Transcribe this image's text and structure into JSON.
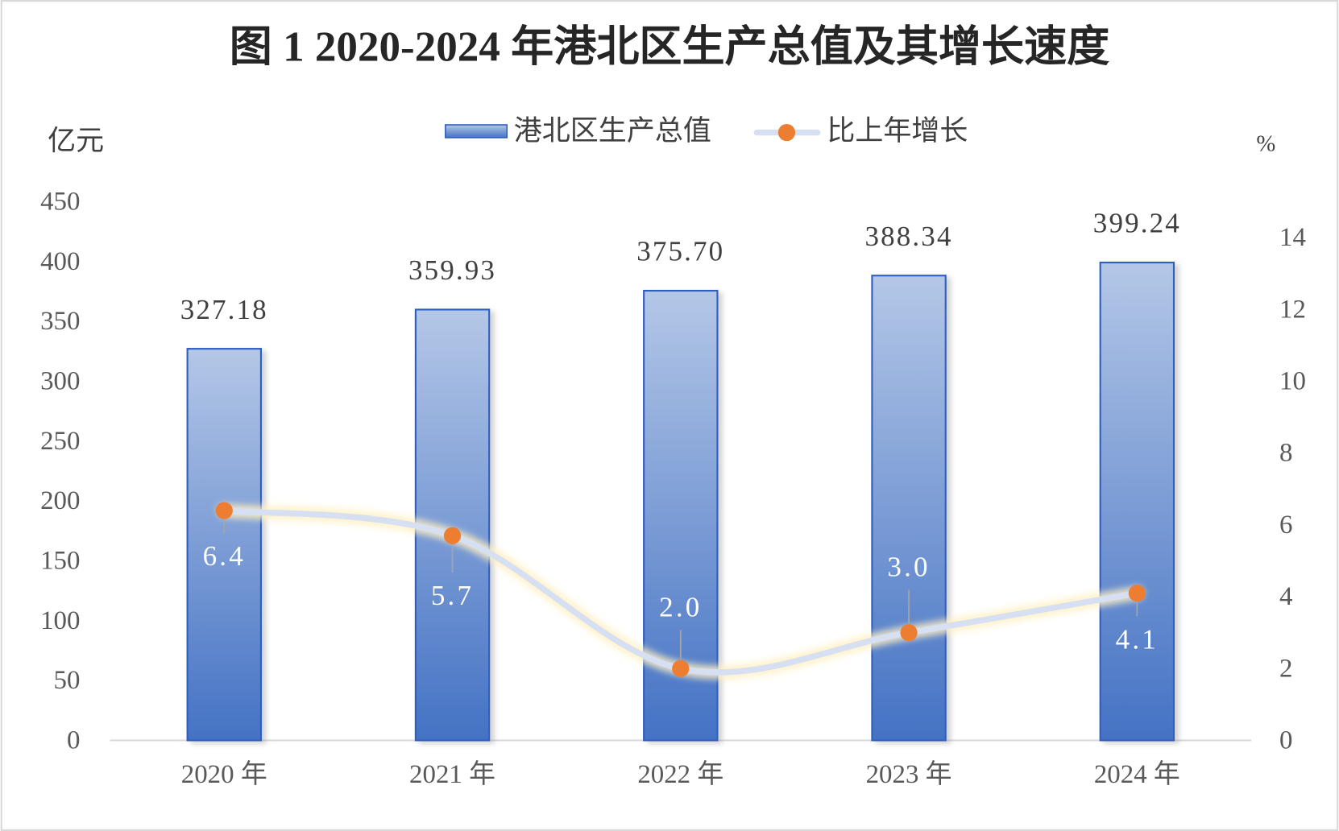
{
  "chart_data": {
    "type": "bar",
    "title": "图 1 2020-2024 年港北区生产总值及其增长速度",
    "categories": [
      "2020 年",
      "2021 年",
      "2022 年",
      "2023 年",
      "2024 年"
    ],
    "series": [
      {
        "name": "港北区生产总值",
        "type": "bar",
        "axis": "left",
        "values": [
          327.18,
          359.93,
          375.7,
          388.34,
          399.24
        ],
        "labels": [
          "327.18",
          "359.93",
          "375.70",
          "388.34",
          "399.24"
        ],
        "color_top": "#b4c7e7",
        "color_bottom": "#4472c4",
        "border_color": "#2f5fbf"
      },
      {
        "name": "比上年增长",
        "type": "line",
        "axis": "right",
        "smooth": true,
        "values": [
          6.4,
          5.7,
          2.0,
          3.0,
          4.1
        ],
        "labels": [
          "6.4",
          "5.7",
          "2.0",
          "3.0",
          "4.1"
        ],
        "line_color": "#d6e0f2",
        "marker_color": "#ed7d31"
      }
    ],
    "y_left": {
      "label": "亿元",
      "ylim": [
        0,
        450
      ],
      "ticks": [
        "0",
        "50",
        "100",
        "150",
        "200",
        "250",
        "300",
        "350",
        "400",
        "450"
      ]
    },
    "y_right": {
      "label": "%",
      "ylim": [
        0,
        15
      ],
      "ticks": [
        "0",
        "2",
        "4",
        "6",
        "8",
        "10",
        "12",
        "14"
      ]
    },
    "legend": {
      "position": "top"
    },
    "grid": false
  }
}
